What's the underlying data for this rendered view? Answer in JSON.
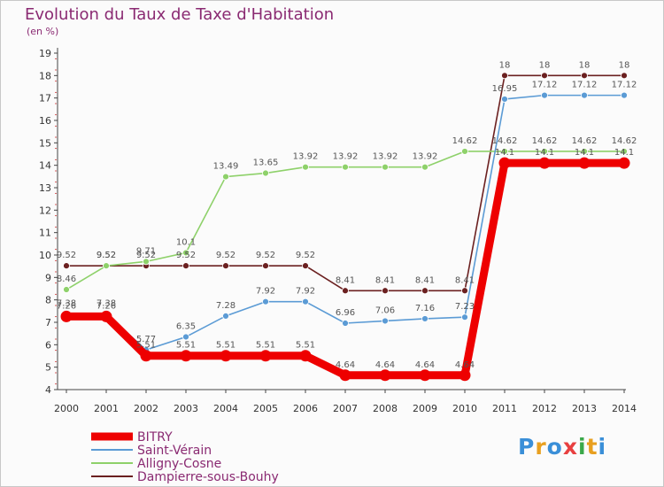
{
  "title": "Evolution du Taux de Taxe d'Habitation",
  "subtitle": "(en %)",
  "logo": {
    "text": "Proxiti",
    "colors": [
      "#3a8fd8",
      "#e8a020",
      "#3a8fd8",
      "#e84040",
      "#3aa84a",
      "#e8a020",
      "#3a8fd8"
    ]
  },
  "chart_data": {
    "type": "line",
    "x": [
      2000,
      2001,
      2002,
      2003,
      2004,
      2005,
      2006,
      2007,
      2008,
      2009,
      2010,
      2011,
      2012,
      2013,
      2014
    ],
    "ylim": [
      4,
      19
    ],
    "yticks": [
      4,
      5,
      6,
      7,
      8,
      9,
      10,
      11,
      12,
      13,
      14,
      15,
      16,
      17,
      18,
      19
    ],
    "grid": false,
    "legend_position": "bottom-left",
    "series": [
      {
        "name": "BITRY",
        "color": "#ee0000",
        "values": [
          7.26,
          7.26,
          5.51,
          5.51,
          5.51,
          5.51,
          5.51,
          4.64,
          4.64,
          4.64,
          4.64,
          14.1,
          14.1,
          14.1,
          14.1
        ]
      },
      {
        "name": "Saint-Vérain",
        "color": "#5b9bd5",
        "values": [
          7.38,
          7.38,
          5.77,
          6.35,
          7.28,
          7.92,
          7.92,
          6.96,
          7.06,
          7.16,
          7.23,
          16.95,
          17.12,
          17.12,
          17.12
        ]
      },
      {
        "name": "Alligny-Cosne",
        "color": "#8ed16a",
        "values": [
          8.46,
          9.52,
          9.71,
          10.1,
          13.49,
          13.65,
          13.92,
          13.92,
          13.92,
          13.92,
          14.62,
          14.62,
          14.62,
          14.62,
          14.62
        ]
      },
      {
        "name": "Dampierre-sous-Bouhy",
        "color": "#6b2020",
        "values": [
          9.52,
          9.52,
          9.52,
          9.52,
          9.52,
          9.52,
          9.52,
          8.41,
          8.41,
          8.41,
          8.41,
          18,
          18,
          18,
          18
        ]
      }
    ],
    "data_labels": [
      [
        "7.26",
        "7.26",
        "5.51",
        "5.51",
        "5.51",
        "5.51",
        "5.51",
        "4.64",
        "4.64",
        "4.64",
        "4.64",
        "14.1",
        "14.1",
        "14.1",
        "14.1"
      ],
      [
        "7.38",
        "7.38",
        "5.77",
        "6.35",
        "7.28",
        "7.92",
        "7.92",
        "6.96",
        "7.06",
        "7.16",
        "7.23",
        "16.95",
        "17.12",
        "17.12",
        "17.12"
      ],
      [
        "8.46",
        "9.52",
        "9.71",
        "10.1",
        "13.49",
        "13.65",
        "13.92",
        "13.92",
        "13.92",
        "13.92",
        "14.62",
        "14.62",
        "14.62",
        "14.62",
        "14.62"
      ],
      [
        "9.52",
        "9.52",
        "9.52",
        "9.52",
        "9.52",
        "9.52",
        "9.52",
        "8.41",
        "8.41",
        "8.41",
        "8.41",
        "18",
        "18",
        "18",
        "18"
      ]
    ]
  }
}
